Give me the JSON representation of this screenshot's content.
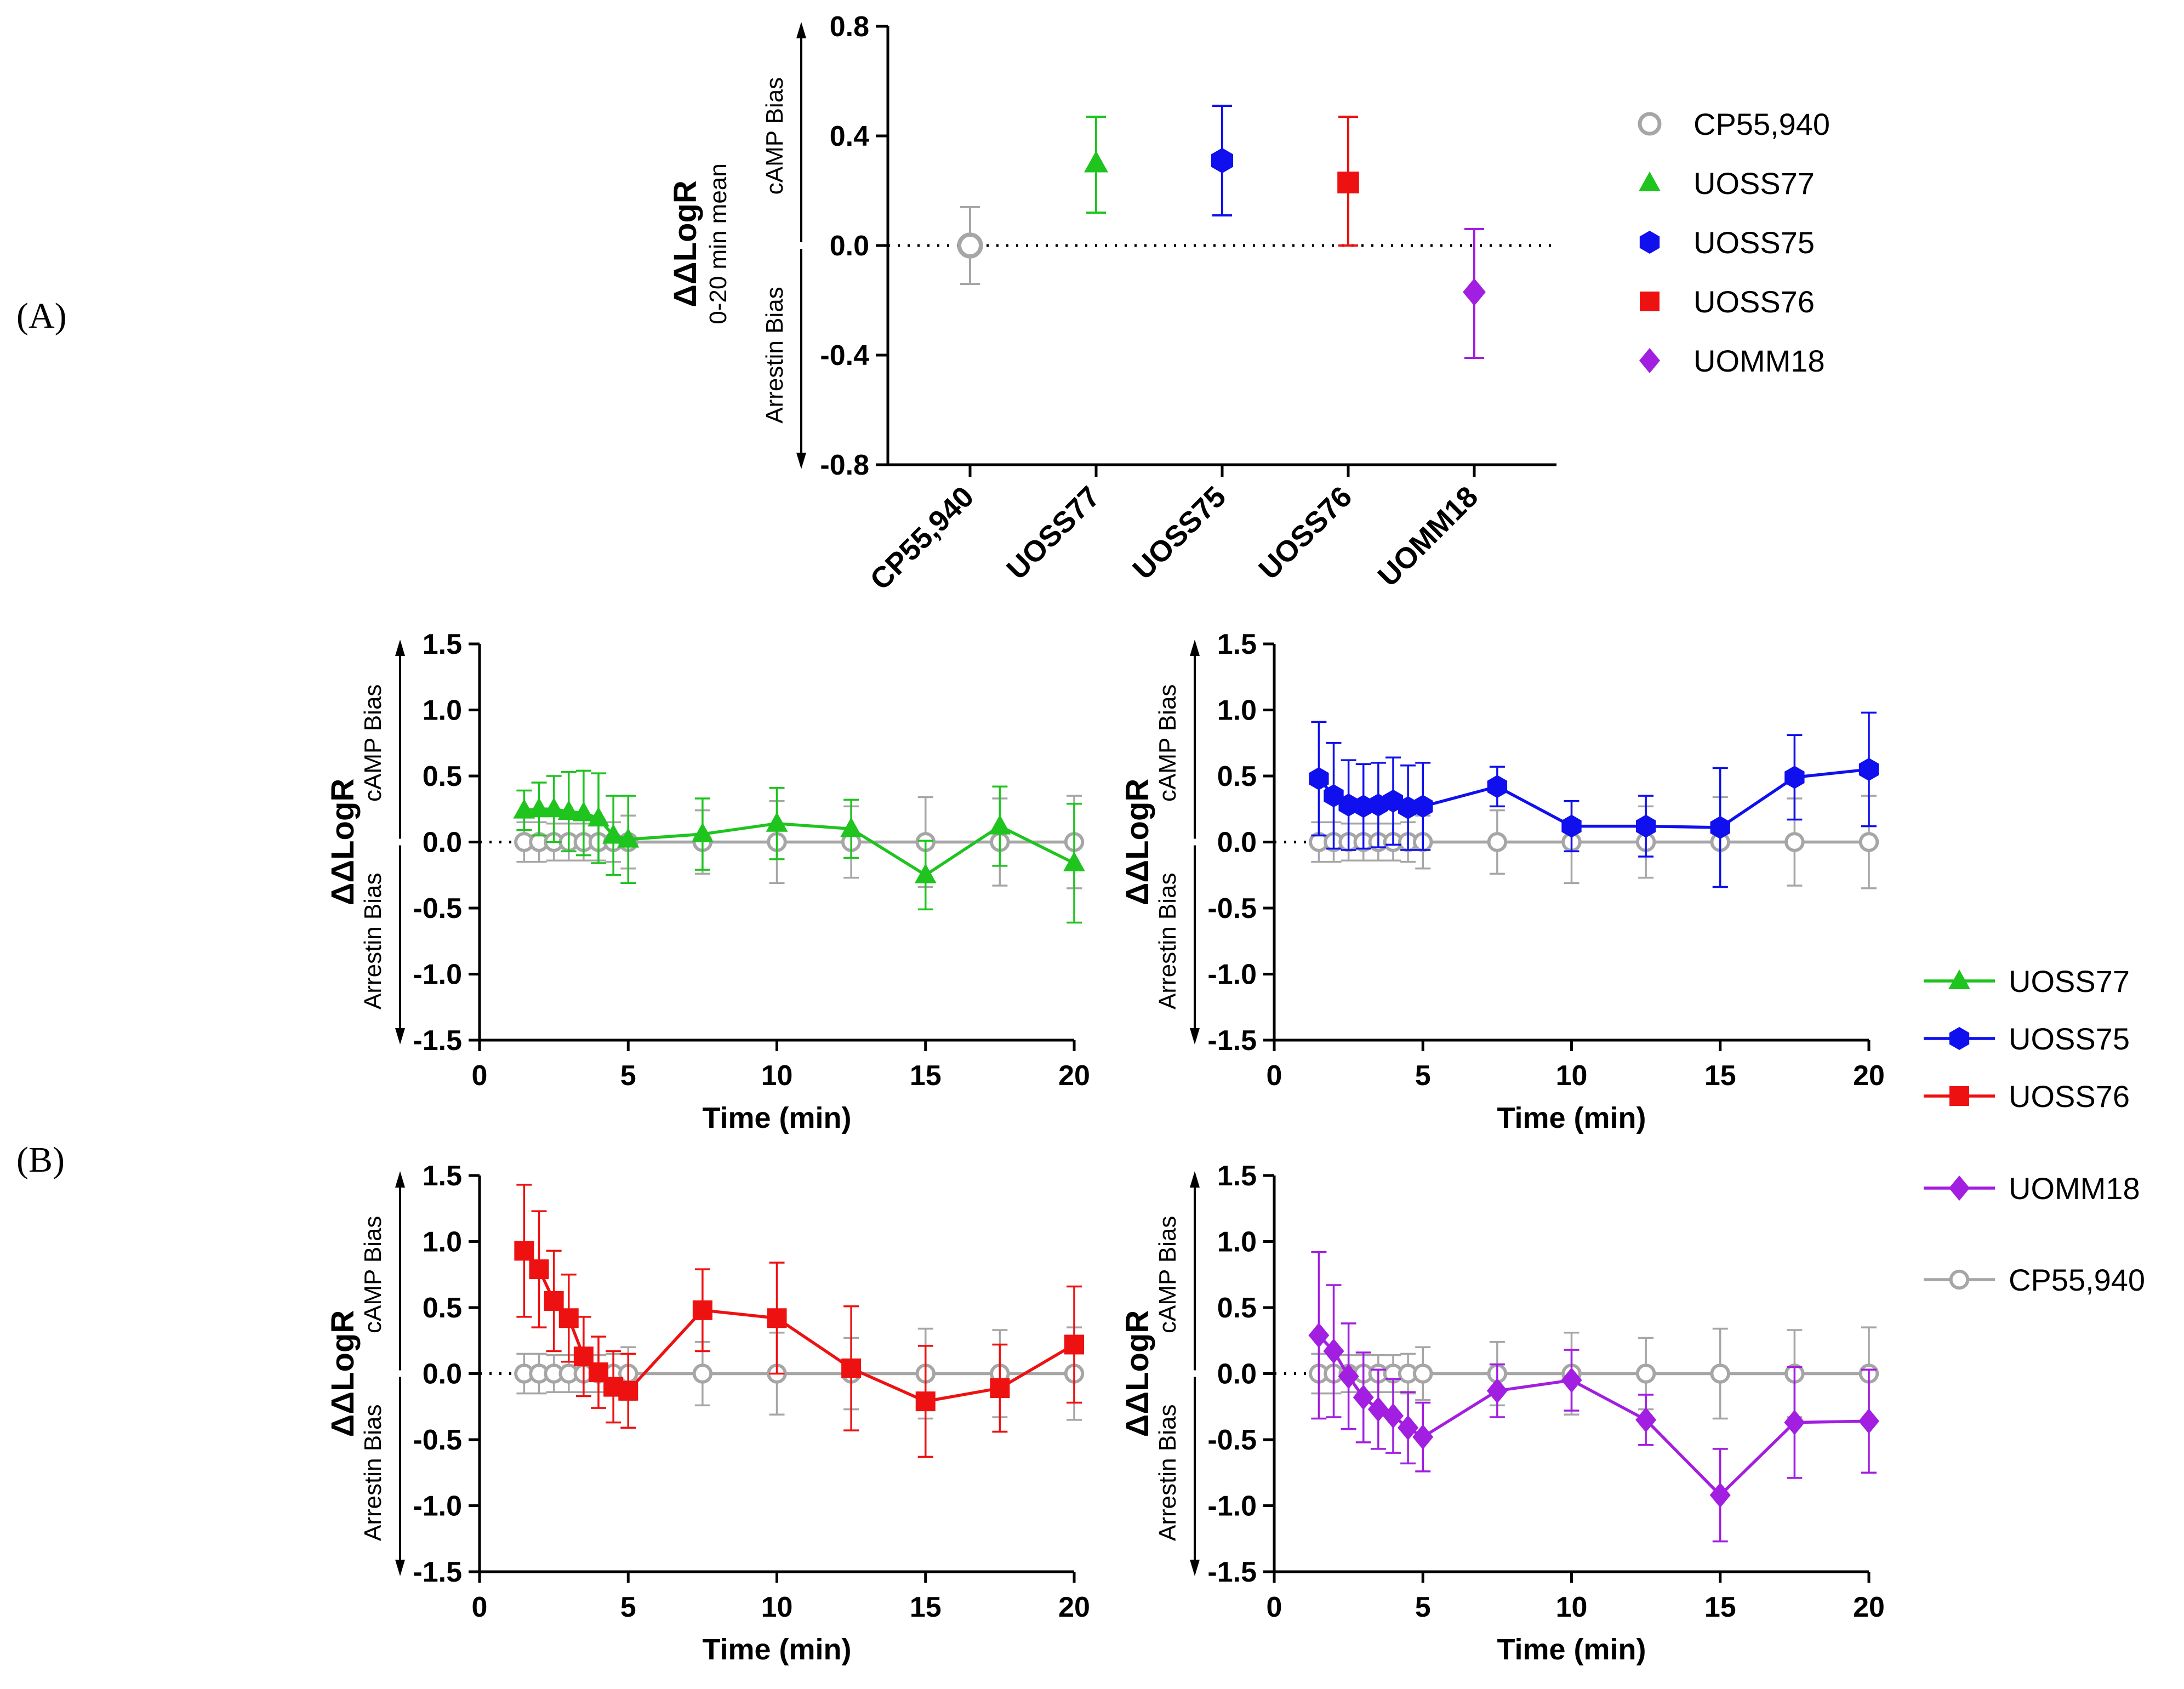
{
  "panel_labels": {
    "a": "(A)",
    "b": "(B)"
  },
  "colors": {
    "CP55,940": "#a6a6a6",
    "UOSS77": "#1fc41f",
    "UOSS75": "#1010ee",
    "UOSS76": "#ee1111",
    "UOMM18": "#a21ee0"
  },
  "chart_data": [
    {
      "id": "A",
      "type": "scatter",
      "title": "",
      "ylabel": "ΔΔLogR",
      "ylabel_sub": "0-20 min mean",
      "bias_up": "cAMP Bias",
      "bias_down": "Arrestin Bias",
      "ylim": [
        -0.8,
        0.8
      ],
      "yticks": [
        "0.8",
        "0.4",
        "0.0",
        "-0.4",
        "-0.8"
      ],
      "categories": [
        "CP55,940",
        "UOSS77",
        "UOSS75",
        "UOSS76",
        "UOMM18"
      ],
      "series": [
        {
          "name": "CP55,940",
          "marker": "circle-open",
          "value": 0.0,
          "err_low": -0.14,
          "err_high": 0.14
        },
        {
          "name": "UOSS77",
          "marker": "triangle",
          "value": 0.3,
          "err_low": 0.12,
          "err_high": 0.47
        },
        {
          "name": "UOSS75",
          "marker": "hexagon",
          "value": 0.31,
          "err_low": 0.11,
          "err_high": 0.51
        },
        {
          "name": "UOSS76",
          "marker": "square",
          "value": 0.23,
          "err_low": 0.0,
          "err_high": 0.47
        },
        {
          "name": "UOMM18",
          "marker": "diamond",
          "value": -0.17,
          "err_low": -0.41,
          "err_high": 0.06
        }
      ],
      "legend": [
        "CP55,940",
        "UOSS77",
        "UOSS75",
        "UOSS76",
        "UOMM18"
      ]
    },
    {
      "id": "B1",
      "type": "line",
      "ylabel": "ΔΔLogR",
      "xlabel": "Time (min)",
      "bias_up": "cAMP Bias",
      "bias_down": "Arrestin Bias",
      "xlim": [
        0,
        20
      ],
      "ylim": [
        -1.5,
        1.5
      ],
      "xticks": [
        "0",
        "5",
        "10",
        "15",
        "20"
      ],
      "yticks": [
        "1.5",
        "1.0",
        "0.5",
        "0.0",
        "-0.5",
        "-1.0",
        "-1.5"
      ],
      "x": [
        1.5,
        2,
        2.5,
        3,
        3.5,
        4,
        4.5,
        5,
        7.5,
        10,
        12.5,
        15,
        17.5,
        20
      ],
      "series": [
        {
          "name": "CP55,940",
          "marker": "circle-open",
          "values": [
            0,
            0,
            0,
            0,
            0,
            0,
            0,
            0,
            0,
            0,
            0,
            0,
            0,
            0
          ],
          "errors": [
            0.15,
            0.15,
            0.14,
            0.14,
            0.14,
            0.14,
            0.15,
            0.2,
            0.24,
            0.31,
            0.27,
            0.34,
            0.33,
            0.35
          ]
        },
        {
          "name": "UOSS77",
          "marker": "triangle",
          "values": [
            0.24,
            0.25,
            0.25,
            0.23,
            0.22,
            0.18,
            0.05,
            0.02,
            0.06,
            0.14,
            0.1,
            -0.25,
            0.12,
            -0.16
          ],
          "errors": [
            0.15,
            0.2,
            0.25,
            0.3,
            0.32,
            0.34,
            0.3,
            0.33,
            0.27,
            0.27,
            0.22,
            0.26,
            0.3,
            0.45
          ]
        }
      ]
    },
    {
      "id": "B2",
      "type": "line",
      "ylabel": "ΔΔLogR",
      "xlabel": "Time (min)",
      "bias_up": "cAMP Bias",
      "bias_down": "Arrestin Bias",
      "xlim": [
        0,
        20
      ],
      "ylim": [
        -1.5,
        1.5
      ],
      "xticks": [
        "0",
        "5",
        "10",
        "15",
        "20"
      ],
      "yticks": [
        "1.5",
        "1.0",
        "0.5",
        "0.0",
        "-0.5",
        "-1.0",
        "-1.5"
      ],
      "x": [
        1.5,
        2,
        2.5,
        3,
        3.5,
        4,
        4.5,
        5,
        7.5,
        10,
        12.5,
        15,
        17.5,
        20
      ],
      "series": [
        {
          "name": "CP55,940",
          "marker": "circle-open",
          "values": [
            0,
            0,
            0,
            0,
            0,
            0,
            0,
            0,
            0,
            0,
            0,
            0,
            0,
            0
          ],
          "errors": [
            0.15,
            0.15,
            0.14,
            0.14,
            0.14,
            0.14,
            0.15,
            0.2,
            0.24,
            0.31,
            0.27,
            0.34,
            0.33,
            0.35
          ]
        },
        {
          "name": "UOSS75",
          "marker": "hexagon",
          "values": [
            0.48,
            0.35,
            0.28,
            0.27,
            0.28,
            0.31,
            0.26,
            0.27,
            0.42,
            0.12,
            0.12,
            0.11,
            0.49,
            0.55
          ],
          "errors": [
            0.43,
            0.4,
            0.34,
            0.32,
            0.32,
            0.33,
            0.32,
            0.33,
            0.15,
            0.19,
            0.23,
            0.45,
            0.32,
            0.43
          ]
        }
      ]
    },
    {
      "id": "B3",
      "type": "line",
      "ylabel": "ΔΔLogR",
      "xlabel": "Time (min)",
      "bias_up": "cAMP Bias",
      "bias_down": "Arrestin Bias",
      "xlim": [
        0,
        20
      ],
      "ylim": [
        -1.5,
        1.5
      ],
      "xticks": [
        "0",
        "5",
        "10",
        "15",
        "20"
      ],
      "yticks": [
        "1.5",
        "1.0",
        "0.5",
        "0.0",
        "-0.5",
        "-1.0",
        "-1.5"
      ],
      "x": [
        1.5,
        2,
        2.5,
        3,
        3.5,
        4,
        4.5,
        5,
        7.5,
        10,
        12.5,
        15,
        17.5,
        20
      ],
      "series": [
        {
          "name": "CP55,940",
          "marker": "circle-open",
          "values": [
            0,
            0,
            0,
            0,
            0,
            0,
            0,
            0,
            0,
            0,
            0,
            0,
            0,
            0
          ],
          "errors": [
            0.15,
            0.15,
            0.14,
            0.14,
            0.14,
            0.14,
            0.15,
            0.2,
            0.24,
            0.31,
            0.27,
            0.34,
            0.33,
            0.35
          ]
        },
        {
          "name": "UOSS76",
          "marker": "square",
          "values": [
            0.93,
            0.79,
            0.55,
            0.42,
            0.13,
            0.01,
            -0.1,
            -0.13,
            0.48,
            0.42,
            0.04,
            -0.21,
            -0.11,
            0.22
          ],
          "errors": [
            0.5,
            0.44,
            0.38,
            0.33,
            0.3,
            0.27,
            0.27,
            0.28,
            0.31,
            0.42,
            0.47,
            0.42,
            0.33,
            0.44
          ]
        }
      ]
    },
    {
      "id": "B4",
      "type": "line",
      "ylabel": "ΔΔLogR",
      "xlabel": "Time (min)",
      "bias_up": "cAMP Bias",
      "bias_down": "Arrestin Bias",
      "xlim": [
        0,
        20
      ],
      "ylim": [
        -1.5,
        1.5
      ],
      "xticks": [
        "0",
        "5",
        "10",
        "15",
        "20"
      ],
      "yticks": [
        "1.5",
        "1.0",
        "0.5",
        "0.0",
        "-0.5",
        "-1.0",
        "-1.5"
      ],
      "x": [
        1.5,
        2,
        2.5,
        3,
        3.5,
        4,
        4.5,
        5,
        7.5,
        10,
        12.5,
        15,
        17.5,
        20
      ],
      "series": [
        {
          "name": "CP55,940",
          "marker": "circle-open",
          "values": [
            0,
            0,
            0,
            0,
            0,
            0,
            0,
            0,
            0,
            0,
            0,
            0,
            0,
            0
          ],
          "errors": [
            0.15,
            0.15,
            0.14,
            0.14,
            0.14,
            0.14,
            0.15,
            0.2,
            0.24,
            0.31,
            0.27,
            0.34,
            0.33,
            0.35
          ]
        },
        {
          "name": "UOMM18",
          "marker": "diamond",
          "values": [
            0.29,
            0.17,
            -0.02,
            -0.18,
            -0.27,
            -0.32,
            -0.41,
            -0.48,
            -0.13,
            -0.05,
            -0.35,
            -0.92,
            -0.37,
            -0.36
          ],
          "errors": [
            0.63,
            0.5,
            0.4,
            0.34,
            0.3,
            0.28,
            0.27,
            0.26,
            0.2,
            0.23,
            0.19,
            0.35,
            0.42,
            0.39
          ]
        }
      ]
    }
  ],
  "legend_b": [
    "UOSS77",
    "UOSS75",
    "UOSS76",
    "UOMM18",
    "CP55,940"
  ]
}
